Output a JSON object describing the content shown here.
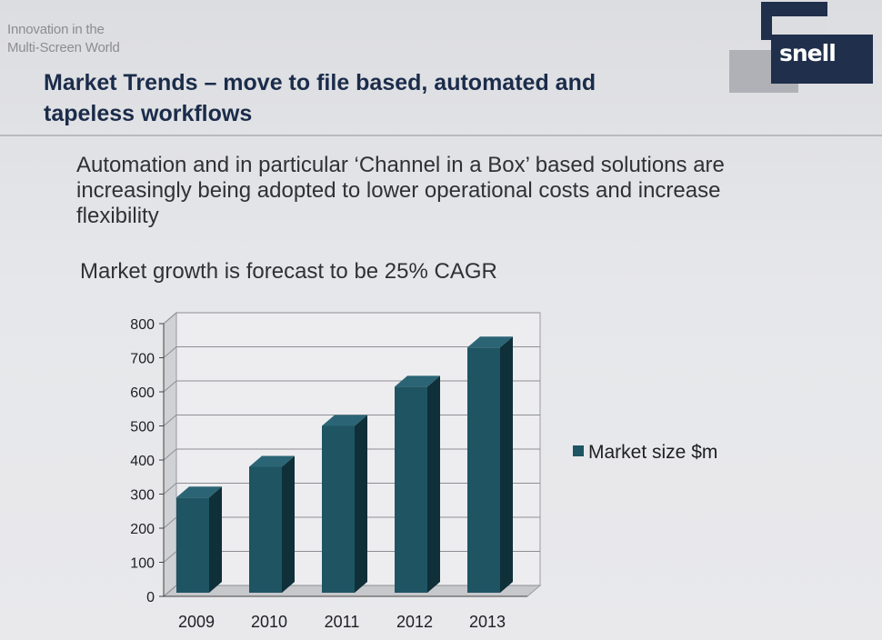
{
  "header": {
    "tagline_line1": "Innovation in the",
    "tagline_line2": "Multi-Screen World",
    "logo_text": "snell"
  },
  "slide": {
    "title_line1": "Market Trends – move to file based, automated and",
    "title_line2": "tapeless workflows",
    "body_line1": "Automation and in particular ‘Channel in a Box’ based solutions are",
    "body_line2": "increasingly being adopted to lower operational costs and increase",
    "body_line3": "flexibility",
    "growth_text": "Market growth is forecast to be 25% CAGR"
  },
  "colors": {
    "bar_front": "#1f5462",
    "bar_side": "#0f2f39",
    "bar_top": "#2b6575",
    "logo_dark": "#1f2f4c",
    "title": "#1b2c4a"
  },
  "chart_data": {
    "type": "bar",
    "style": "3d-column",
    "categories": [
      "2009",
      "2010",
      "2011",
      "2012",
      "2013"
    ],
    "series": [
      {
        "name": "Market size $m",
        "values": [
          290,
          380,
          500,
          615,
          730
        ]
      }
    ],
    "ylim": [
      0,
      800
    ],
    "yticks": [
      0,
      100,
      200,
      300,
      400,
      500,
      600,
      700,
      800
    ],
    "ytick_labels": [
      "0",
      "100",
      "200",
      "300",
      "400",
      "500",
      "600",
      "700",
      "800"
    ],
    "grid": true,
    "legend_position": "right"
  }
}
